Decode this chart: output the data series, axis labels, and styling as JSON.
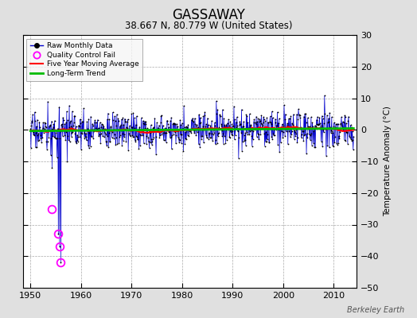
{
  "title": "GASSAWAY",
  "subtitle": "38.667 N, 80.779 W (United States)",
  "ylabel": "Temperature Anomaly (°C)",
  "watermark": "Berkeley Earth",
  "xlim": [
    1948.5,
    2014.5
  ],
  "ylim": [
    -50,
    30
  ],
  "yticks": [
    -50,
    -40,
    -30,
    -20,
    -10,
    0,
    10,
    20,
    30
  ],
  "xticks": [
    1950,
    1960,
    1970,
    1980,
    1990,
    2000,
    2010
  ],
  "start_year": 1950,
  "end_year": 2013,
  "background_color": "#e0e0e0",
  "plot_bg_color": "#ffffff",
  "raw_line_color": "#0000cc",
  "raw_marker_color": "#000000",
  "qc_fail_color": "#ff00ff",
  "moving_avg_color": "#ff0000",
  "trend_color": "#00bb00",
  "qc_fail_points": [
    [
      1954.25,
      -25.0
    ],
    [
      1955.5,
      -33.0
    ],
    [
      1955.75,
      -37.0
    ],
    [
      1956.0,
      -42.0
    ]
  ],
  "noise_std": 2.8,
  "seed": 17
}
